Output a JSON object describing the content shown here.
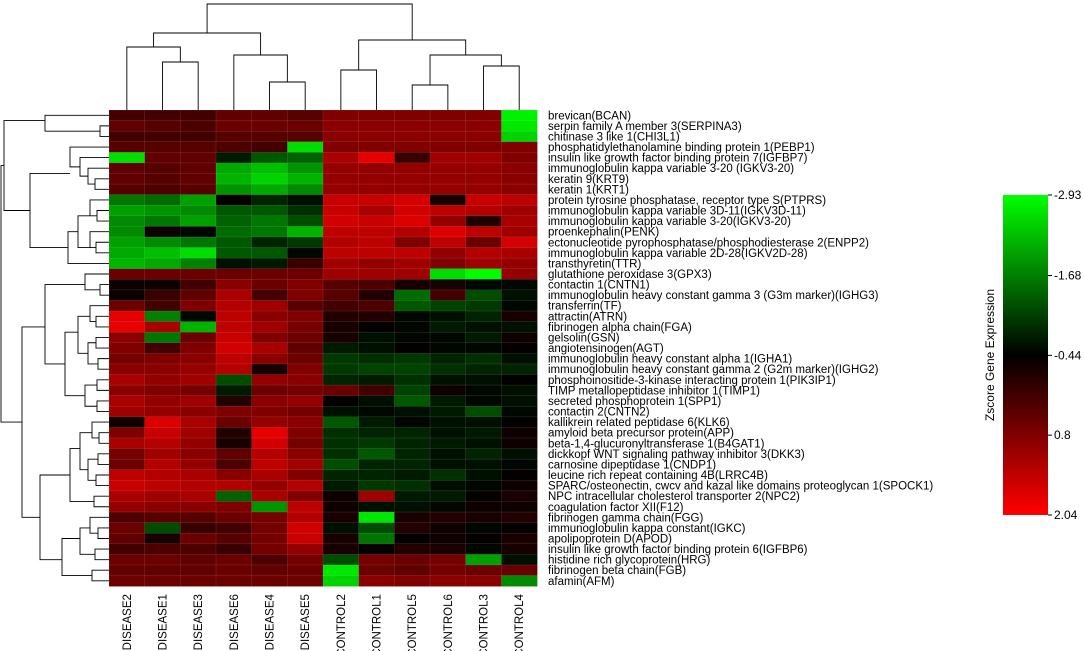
{
  "chart_data": {
    "type": "heatmap",
    "samples": [
      "DISEASE2",
      "DISEASE1",
      "DISEASE3",
      "DISEASE6",
      "DISEASE4",
      "DISEASE5",
      "CONTROL2",
      "CONTROL1",
      "CONTROL5",
      "CONTROL6",
      "CONTROL3",
      "CONTROL4"
    ],
    "genes": [
      "brevican(BCAN)",
      "serpin family A member 3(SERPINA3)",
      "chitinase 3 like 1(CHI3L1)",
      "phosphatidylethanolamine binding protein 1(PEBP1)",
      "insulin like growth factor binding protein 7(IGFBP7)",
      "immunoglobulin kappa variable 3-20 (IGKV3-20)",
      "keratin 9(KRT9)",
      "keratin 1(KRT1)",
      "protein tyrosine phosphatase, receptor type S(PTPRS)",
      "immunoglobulin kappa variable 3D-11(IGKV3D-11)",
      "immunoglobulin kappa variable 3-20(IGKV3-20)",
      "proenkephalin(PENK)",
      "ectonucleotide pyrophosphatase/phosphodiesterase 2(ENPP2)",
      "immunoglobulin kappa variable 2D-28(IGKV2D-28)",
      "transthyretin(TTR)",
      "glutathione peroxidase 3(GPX3)",
      "contactin 1(CNTN1)",
      "immunoglobulin heavy constant gamma 3 (G3m marker)(IGHG3)",
      "transferrin(TF)",
      "attractin(ATRN)",
      "fibrinogen alpha chain(FGA)",
      "gelsolin(GSN)",
      "angiotensinogen(AGT)",
      "immunoglobulin heavy constant alpha 1(IGHA1)",
      "immunoglobulin heavy constant gamma 2 (G2m marker)(IGHG2)",
      "phosphoinositide-3-kinase interacting protein 1(PIK3IP1)",
      "TIMP metallopeptidase inhibitor 1(TIMP1)",
      "secreted phosphoprotein 1(SPP1)",
      "contactin 2(CNTN2)",
      "kallikrein related peptidase 6(KLK6)",
      "amyloid beta precursor protein(APP)",
      "beta-1,4-glucuronyltransferase 1(B4GAT1)",
      "dickkopf WNT signaling pathway inhibitor 3(DKK3)",
      "carnosine dipeptidase 1(CNDP1)",
      "leucine rich repeat containing 4B(LRRC4B)",
      "SPARC/osteonectin, cwcv and kazal like domains proteoglycan 1(SPOCK1)",
      "NPC intracellular cholesterol transporter 2(NPC2)",
      "coagulation factor XII(F12)",
      "fibrinogen gamma chain(FGG)",
      "immunoglobulin kappa constant(IGKC)",
      "apolipoprotein D(APOD)",
      "insulin like growth factor binding protein 6(IGFBP6)",
      "histidine rich glycoprotein(HRG)",
      "fibrinogen beta chain(FGB)",
      "afamin(AFM)"
    ],
    "values": [
      [
        0.2,
        0.2,
        0.2,
        0.5,
        0.5,
        0.4,
        0.8,
        0.8,
        0.8,
        0.8,
        0.8,
        -2.8
      ],
      [
        0.5,
        0.4,
        0.3,
        0.6,
        0.6,
        0.6,
        0.9,
        0.9,
        0.9,
        0.9,
        0.9,
        -2.7
      ],
      [
        0.2,
        0.2,
        0.2,
        0.4,
        0.4,
        0.4,
        0.9,
        0.9,
        0.9,
        0.9,
        0.9,
        -2.5
      ],
      [
        0.4,
        0.4,
        0.4,
        0.3,
        0.2,
        -2.6,
        0.8,
        0.8,
        0.8,
        0.8,
        0.8,
        0.8
      ],
      [
        -2.6,
        0.5,
        0.5,
        -0.7,
        -1.3,
        -1.4,
        1.2,
        1.8,
        0.1,
        1.1,
        1.1,
        0.8
      ],
      [
        0.5,
        0.4,
        0.5,
        -2.1,
        -2.3,
        -1.9,
        1.0,
        1.0,
        1.0,
        1.0,
        1.0,
        0.9
      ],
      [
        0.5,
        0.4,
        0.5,
        -2.2,
        -2.5,
        -2.2,
        1.0,
        1.0,
        1.0,
        1.0,
        1.0,
        0.9
      ],
      [
        0.4,
        0.3,
        0.4,
        -1.9,
        -2.1,
        -1.8,
        1.0,
        1.0,
        1.0,
        1.0,
        1.0,
        0.9
      ],
      [
        -1.6,
        -1.5,
        -2.0,
        -0.4,
        -0.8,
        -0.6,
        1.5,
        1.5,
        1.6,
        -0.2,
        1.5,
        1.4
      ],
      [
        -2.0,
        -1.9,
        -1.8,
        -1.3,
        -1.3,
        -0.9,
        1.5,
        1.2,
        1.6,
        1.4,
        1.3,
        1.1
      ],
      [
        -1.8,
        -1.6,
        -2.0,
        -1.4,
        -1.6,
        -1.2,
        1.6,
        1.5,
        1.7,
        1.0,
        -0.1,
        1.2
      ],
      [
        -1.8,
        -0.3,
        -0.5,
        -1.5,
        -1.6,
        -2.2,
        1.4,
        1.4,
        1.3,
        1.7,
        1.4,
        1.1
      ],
      [
        -2.0,
        -1.8,
        -1.6,
        -1.3,
        -0.8,
        -1.0,
        1.3,
        1.4,
        0.8,
        1.4,
        0.6,
        1.6
      ],
      [
        -2.1,
        -2.3,
        -2.6,
        -1.3,
        -1.3,
        -0.5,
        1.4,
        1.4,
        1.4,
        1.0,
        1.3,
        1.2
      ],
      [
        -2.2,
        -2.1,
        -1.7,
        -0.6,
        -0.7,
        0.1,
        1.1,
        1.0,
        1.1,
        0.8,
        1.1,
        1.0
      ],
      [
        0.6,
        0.6,
        0.6,
        0.6,
        0.6,
        0.6,
        1.1,
        1.1,
        1.1,
        -2.6,
        -2.9,
        1.0
      ],
      [
        -0.3,
        -0.3,
        0.2,
        0.9,
        0.6,
        0.8,
        0.4,
        0.3,
        -0.2,
        -0.2,
        -0.5,
        -0.5
      ],
      [
        -0.3,
        0.1,
        0.5,
        1.2,
        0.2,
        0.8,
        0.4,
        -0.1,
        -1.5,
        0.2,
        -1.2,
        -0.6
      ],
      [
        0.6,
        0.2,
        0.8,
        1.3,
        1.1,
        0.4,
        0.2,
        0.3,
        -1.3,
        -1.1,
        -1.0,
        -0.5
      ],
      [
        1.8,
        -1.7,
        -0.5,
        1.4,
        0.9,
        0.8,
        -0.1,
        -0.1,
        -0.5,
        -0.6,
        -0.8,
        -0.2
      ],
      [
        1.8,
        1.2,
        -2.2,
        1.4,
        1.1,
        0.7,
        -0.2,
        -0.4,
        -0.5,
        -0.7,
        -0.6,
        -0.6
      ],
      [
        0.9,
        -1.6,
        0.6,
        1.5,
        0.8,
        0.6,
        -0.2,
        -0.6,
        -0.5,
        -0.5,
        -0.7,
        -0.3
      ],
      [
        0.8,
        0.2,
        0.8,
        1.6,
        1.2,
        0.5,
        -0.7,
        -0.6,
        -0.4,
        -0.5,
        -0.5,
        -0.4
      ],
      [
        0.7,
        0.8,
        0.9,
        1.4,
        0.9,
        0.6,
        -1.0,
        -0.9,
        -1.0,
        -0.8,
        -0.9,
        -0.6
      ],
      [
        0.9,
        0.9,
        1.0,
        1.3,
        -0.2,
        0.8,
        -1.0,
        -1.1,
        -1.1,
        -0.9,
        -0.8,
        -0.8
      ],
      [
        1.2,
        1.0,
        1.1,
        -1.2,
        1.0,
        0.9,
        -0.8,
        -0.7,
        -0.9,
        -0.6,
        -0.6,
        -0.4
      ],
      [
        0.9,
        0.8,
        0.7,
        -0.7,
        0.6,
        0.7,
        0.6,
        0.2,
        -1.1,
        -0.3,
        -0.5,
        -0.6
      ],
      [
        1.2,
        1.0,
        1.1,
        -0.1,
        0.9,
        1.0,
        -0.4,
        -0.6,
        -1.3,
        -0.7,
        -0.5,
        -0.6
      ],
      [
        1.1,
        1.0,
        0.9,
        0.8,
        0.8,
        0.7,
        -0.6,
        -0.5,
        -0.6,
        -0.7,
        -1.2,
        -0.5
      ],
      [
        -0.3,
        1.7,
        1.2,
        0.6,
        1.0,
        0.9,
        -1.3,
        -0.7,
        -0.5,
        -0.6,
        -0.6,
        -0.4
      ],
      [
        0.8,
        1.5,
        1.1,
        -0.1,
        1.8,
        0.8,
        -0.9,
        -0.8,
        -0.8,
        -0.6,
        -0.7,
        -0.3
      ],
      [
        1.2,
        1.3,
        1.0,
        -0.2,
        1.6,
        0.7,
        -0.9,
        -1.0,
        -0.8,
        -0.7,
        -0.6,
        -0.3
      ],
      [
        0.7,
        1.1,
        0.9,
        0.5,
        1.3,
        0.9,
        -0.9,
        -1.3,
        -0.8,
        -0.6,
        -0.8,
        -0.6
      ],
      [
        0.6,
        1.3,
        1.0,
        0.3,
        1.4,
        1.1,
        -1.2,
        -0.8,
        -0.8,
        -0.6,
        -0.6,
        -0.5
      ],
      [
        1.4,
        1.3,
        1.2,
        0.9,
        1.2,
        0.8,
        -0.8,
        -0.8,
        -0.7,
        -0.9,
        -0.6,
        -0.4
      ],
      [
        1.5,
        1.4,
        1.3,
        1.3,
        1.0,
        1.3,
        -0.7,
        -1.0,
        -0.9,
        -0.6,
        -0.5,
        -0.3
      ],
      [
        1.2,
        1.1,
        1.2,
        -1.4,
        1.2,
        0.8,
        -0.3,
        1.1,
        -0.7,
        -0.7,
        -0.4,
        -0.2
      ],
      [
        1.0,
        0.9,
        0.9,
        0.8,
        -1.9,
        1.4,
        -0.3,
        -0.6,
        -0.6,
        -0.5,
        -0.3,
        -0.3
      ],
      [
        0.3,
        0.4,
        0.4,
        0.6,
        0.7,
        1.3,
        -0.2,
        -2.7,
        -0.2,
        -0.1,
        -0.2,
        -0.1
      ],
      [
        0.6,
        -1.2,
        0.1,
        0.2,
        0.7,
        1.6,
        -0.6,
        -1.2,
        -0.1,
        -0.3,
        -0.5,
        -0.4
      ],
      [
        0.5,
        -0.2,
        0.6,
        0.4,
        0.7,
        1.5,
        -0.2,
        -1.6,
        -0.4,
        -0.3,
        -0.4,
        -0.2
      ],
      [
        0.2,
        0.3,
        0.3,
        0.1,
        0.7,
        1.0,
        -0.2,
        -0.4,
        -0.1,
        -0.2,
        -0.5,
        -0.2
      ],
      [
        0.6,
        0.6,
        0.5,
        0.6,
        0.3,
        0.7,
        -1.2,
        0.7,
        0.6,
        0.7,
        -2.0,
        -0.6
      ],
      [
        0.5,
        0.5,
        0.5,
        0.6,
        0.5,
        0.6,
        -2.7,
        0.6,
        0.5,
        0.7,
        0.6,
        0.6
      ],
      [
        0.6,
        0.6,
        0.6,
        0.6,
        0.6,
        0.6,
        -2.5,
        0.9,
        0.8,
        0.9,
        0.9,
        -1.8
      ]
    ],
    "colorbar": {
      "title": "Zscore Gene Expression",
      "ticks": [
        "-2.93",
        "-1.68",
        "-0.44",
        "0.8",
        "2.04"
      ],
      "min": -2.93,
      "max": 2.04,
      "low_color": "#00ff00",
      "mid_color": "#000000",
      "high_color": "#ff0000"
    },
    "dendrogram_row": true,
    "dendrogram_col": true,
    "legend_placement": "right"
  }
}
